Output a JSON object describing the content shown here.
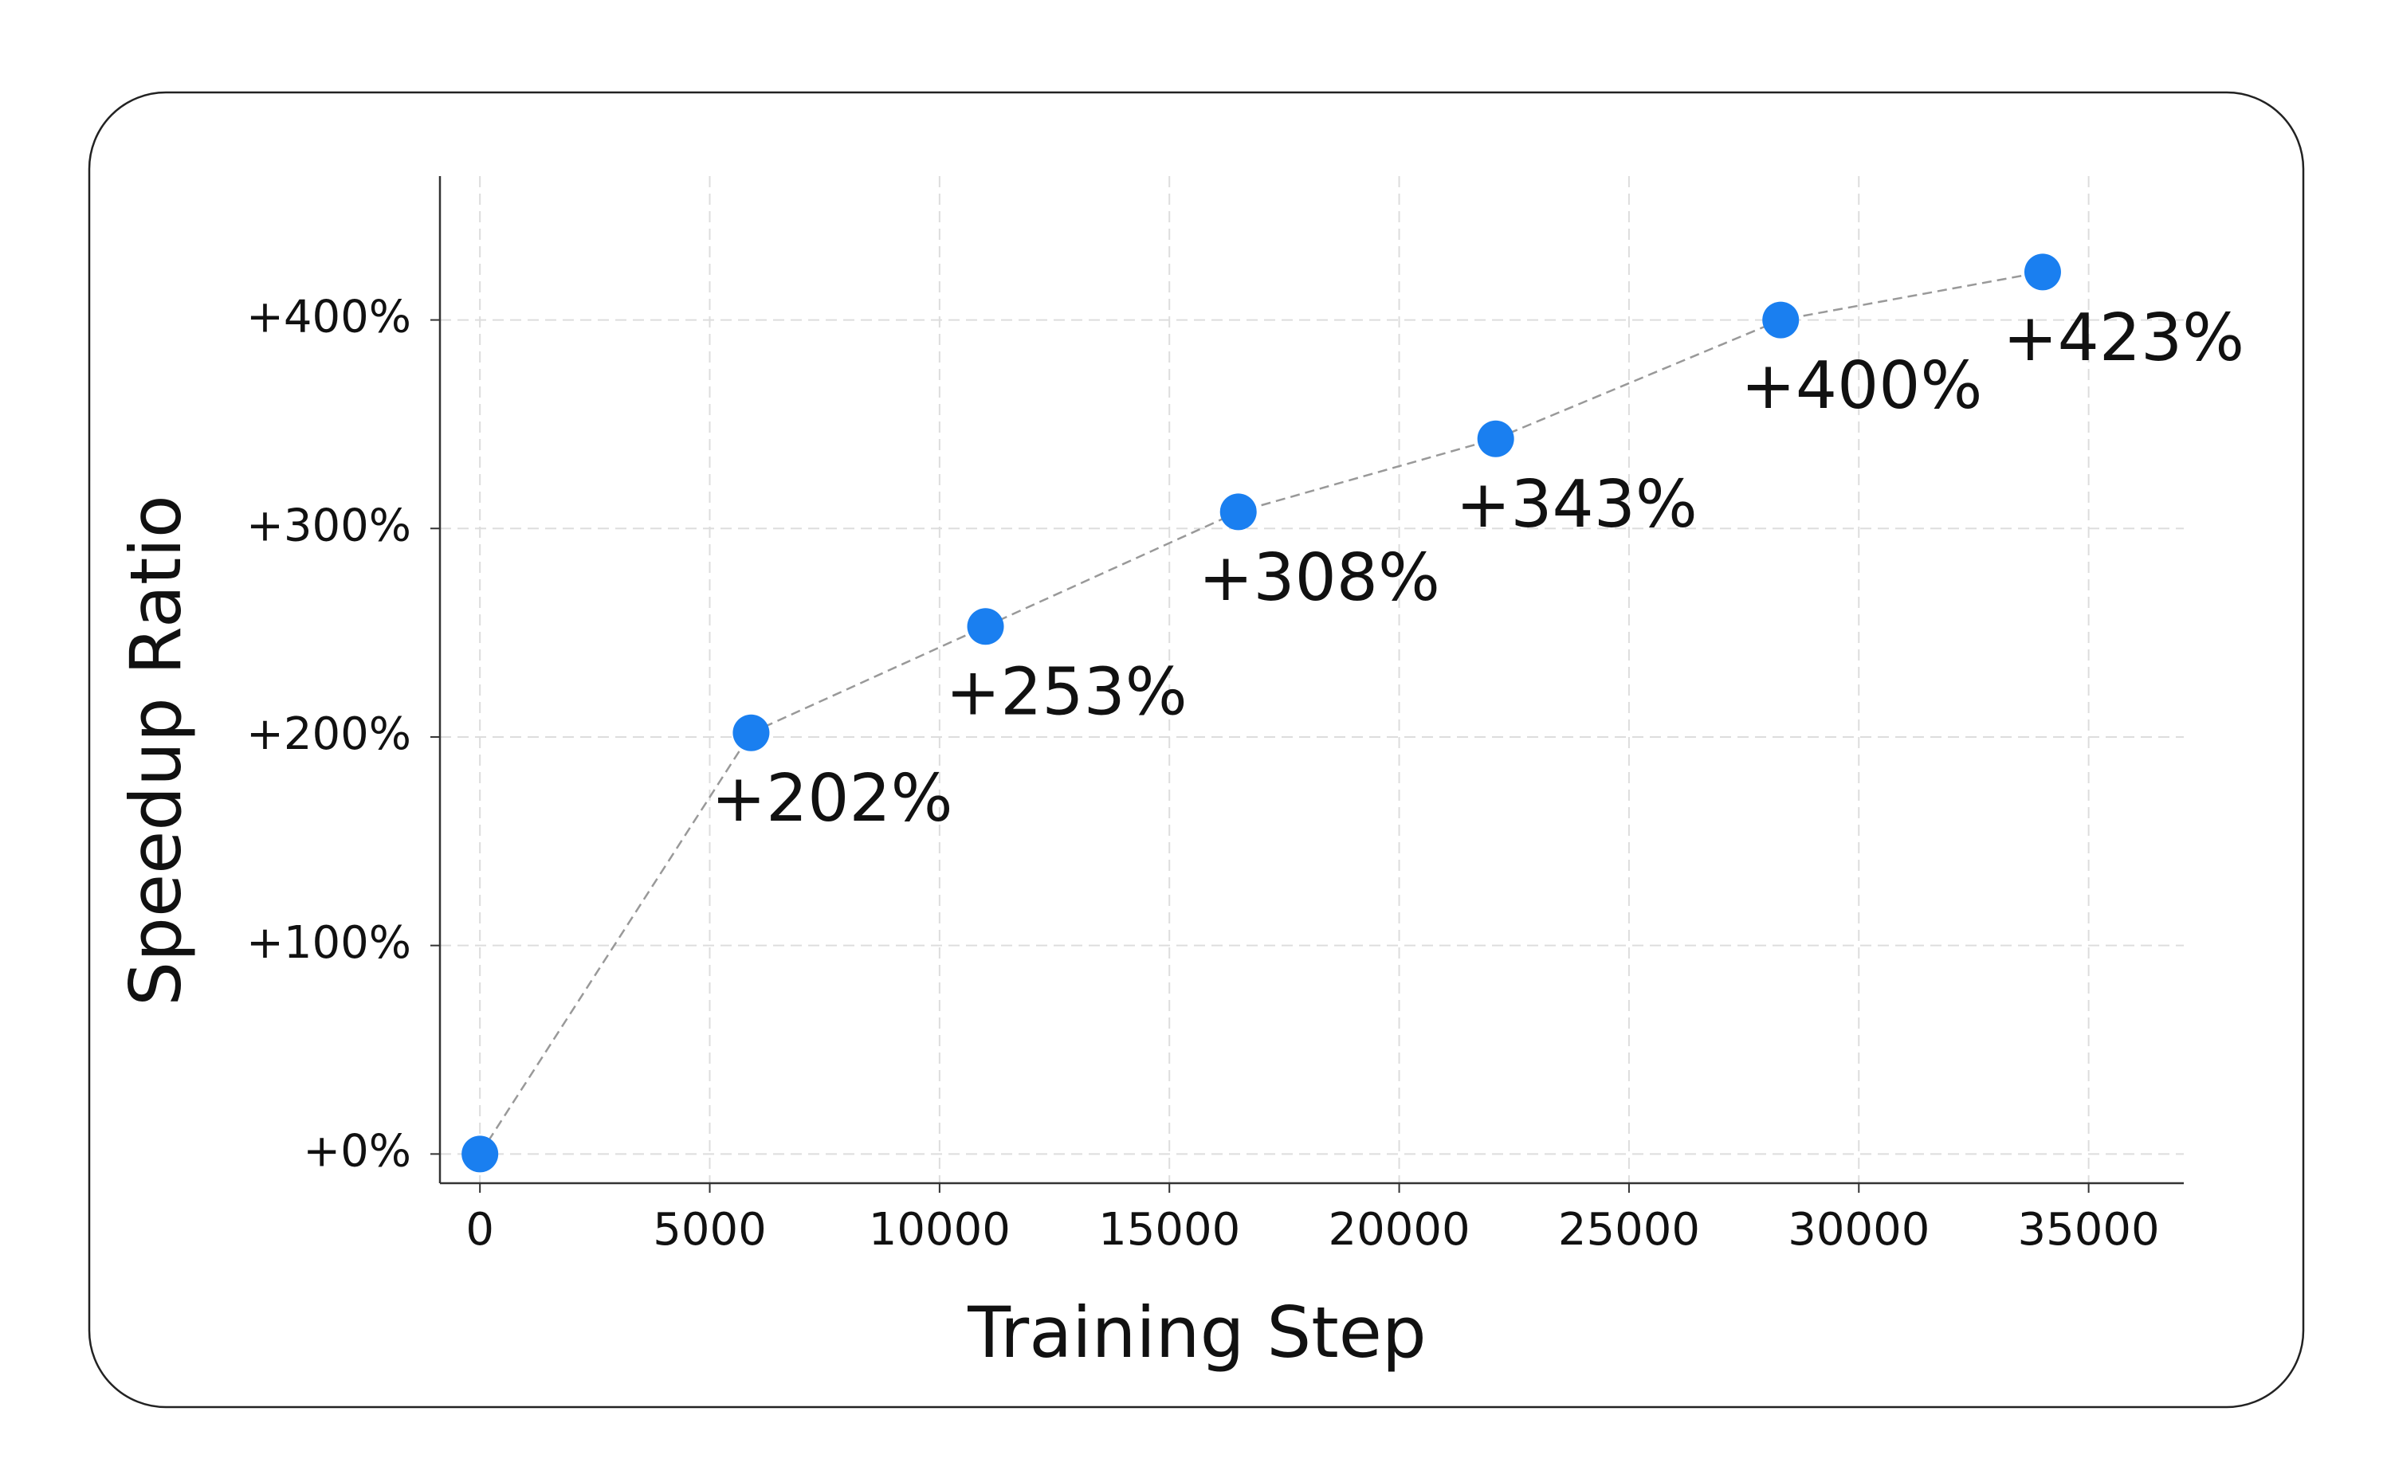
{
  "chart_data": {
    "type": "line",
    "x_label": "Training Step",
    "y_label": "Speedup Ratio",
    "x": [
      0,
      5900,
      11000,
      16500,
      22100,
      28300,
      34000
    ],
    "values": [
      0,
      202,
      253,
      308,
      343,
      400,
      423
    ],
    "value_labels": [
      null,
      "+202%",
      "+253%",
      "+308%",
      "+343%",
      "+400%",
      "+423%"
    ],
    "color": "#1a7ff0",
    "line_color": "#999999",
    "xlim": [
      -870,
      37070
    ],
    "ylim": [
      -14,
      469
    ],
    "xticks": [
      0,
      5000,
      10000,
      15000,
      20000,
      25000,
      30000,
      35000
    ],
    "yticks": [
      {
        "value": 0,
        "label": "+0%"
      },
      {
        "value": 100,
        "label": "+100%"
      },
      {
        "value": 200,
        "label": "+200%"
      },
      {
        "value": 300,
        "label": "+300%"
      },
      {
        "value": 400,
        "label": "+400%"
      }
    ],
    "grid": true
  }
}
